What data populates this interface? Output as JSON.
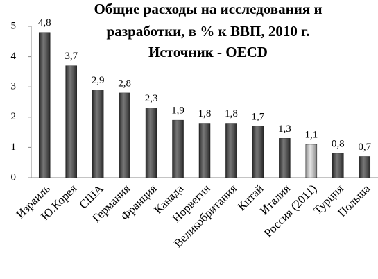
{
  "chart_data": {
    "type": "bar",
    "title": [
      "Общие расходы на исследования и",
      "разработки, в % к ВВП, 2010 г.",
      "Источник - OECD"
    ],
    "categories": [
      "Израиль",
      "Ю.Корея",
      "США",
      "Германия",
      "Франция",
      "Канада",
      "Норвегия",
      "Великобритания",
      "Китай",
      "Италия",
      "Россия (2011)",
      "Турция",
      "Польша"
    ],
    "values": [
      4.8,
      3.7,
      2.9,
      2.8,
      2.3,
      1.9,
      1.8,
      1.8,
      1.7,
      1.3,
      1.1,
      0.8,
      0.7
    ],
    "value_labels": [
      "4,8",
      "3,7",
      "2,9",
      "2,8",
      "2,3",
      "1,9",
      "1,8",
      "1,8",
      "1,7",
      "1,3",
      "1,1",
      "0,8",
      "0,7"
    ],
    "colors": [
      "#3c3c3c",
      "#3c3c3c",
      "#3c3c3c",
      "#3c3c3c",
      "#3c3c3c",
      "#3c3c3c",
      "#3c3c3c",
      "#3c3c3c",
      "#3c3c3c",
      "#3c3c3c",
      "#d8d8d8",
      "#3c3c3c",
      "#3c3c3c"
    ],
    "ylim": [
      0,
      5
    ],
    "yticks": [
      0,
      1,
      2,
      3,
      4,
      5
    ],
    "grid": false
  }
}
